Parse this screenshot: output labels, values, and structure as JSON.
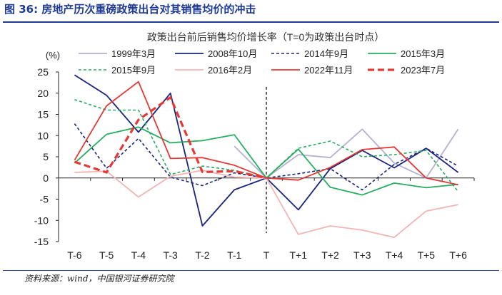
{
  "figure": {
    "title": "图 36:  房地产历次重磅政策出台对其销售均价的冲击",
    "source": "资料来源：wind，中国银河证券研究院"
  },
  "chart_data": {
    "type": "line",
    "title": "政策出台前后销售均价增长率（T=0为政策出台时点）",
    "ylabel": "(%)",
    "xlabel": "",
    "ylim": [
      -15,
      25
    ],
    "yticks": [
      -15,
      -10,
      -5,
      0,
      5,
      10,
      15,
      20,
      25
    ],
    "categories": [
      "T-6",
      "T-5",
      "T-4",
      "T-3",
      "T-2",
      "T-1",
      "T",
      "T+1",
      "T+2",
      "T+3",
      "T+4",
      "T+5",
      "T+6"
    ],
    "policy_marker": "T",
    "grid": false,
    "legend_position": "top",
    "series": [
      {
        "name": "1999年3月",
        "color": "#b4b1d4",
        "dash": "solid",
        "width": 1.8,
        "values": [
          null,
          null,
          null,
          null,
          null,
          7.5,
          0,
          5.5,
          4.8,
          11.5,
          3.5,
          0,
          11.5
        ]
      },
      {
        "name": "2008年10月",
        "color": "#1a237e",
        "dash": "solid",
        "width": 1.8,
        "values": [
          24.3,
          19.5,
          10.8,
          20.0,
          -11.3,
          -2.8,
          0,
          -7.5,
          2.2,
          6.5,
          2.4,
          7.0,
          1.3
        ]
      },
      {
        "name": "2014年9月",
        "color": "#1a237e",
        "dash": "shortdash",
        "width": 1.6,
        "values": [
          12.8,
          2.3,
          9.3,
          0.2,
          -1.8,
          1.2,
          0,
          1.0,
          2.2,
          -2.8,
          3.2,
          7.0,
          2.8
        ]
      },
      {
        "name": "2015年3月",
        "color": "#27ae60",
        "dash": "solid",
        "width": 1.8,
        "values": [
          3.5,
          10.3,
          12.0,
          8.3,
          8.8,
          10.2,
          0,
          6.8,
          -2.2,
          -4.0,
          -1.2,
          -2.3,
          -1.5
        ]
      },
      {
        "name": "2015年9月",
        "color": "#27ae60",
        "dash": "shortdash",
        "width": 1.6,
        "values": [
          18.5,
          16.0,
          16.0,
          0.8,
          2.8,
          1.8,
          0,
          7.0,
          8.7,
          5.0,
          5.5,
          6.5,
          -3.2
        ]
      },
      {
        "name": "2016年2月",
        "color": "#f4b4b4",
        "dash": "solid",
        "width": 1.8,
        "values": [
          1.3,
          1.6,
          -4.5,
          0.4,
          1.8,
          0.2,
          0,
          -13.3,
          -11.3,
          -12.3,
          -14.0,
          -7.8,
          -6.3
        ]
      },
      {
        "name": "2022年11月",
        "color": "#e53935",
        "dash": "solid",
        "width": 1.8,
        "values": [
          4.2,
          17.0,
          22.7,
          4.6,
          4.8,
          3.0,
          0,
          -0.5,
          2.5,
          6.7,
          7.3,
          0.0,
          -1.6
        ]
      },
      {
        "name": "2023年7月",
        "color": "#e53935",
        "dash": "longdash",
        "width": 3.2,
        "values": [
          3.8,
          1.3,
          13.7,
          19.0,
          1.4,
          1.6,
          0,
          null,
          null,
          null,
          null,
          null,
          null
        ]
      }
    ]
  }
}
